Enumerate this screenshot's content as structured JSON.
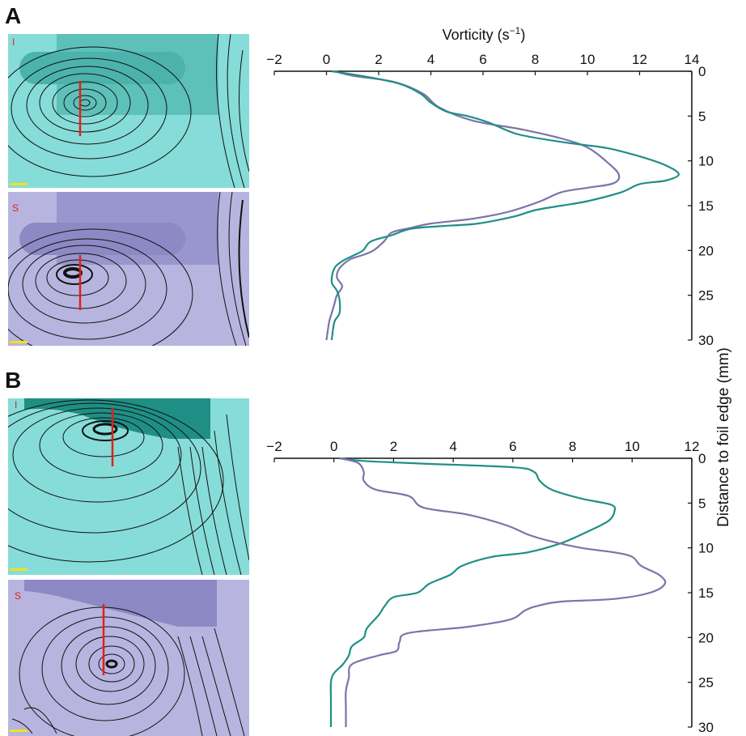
{
  "panels": [
    {
      "letter": "A",
      "top_label": "I",
      "bottom_label": "S"
    },
    {
      "letter": "B",
      "top_label": "I",
      "bottom_label": "S"
    }
  ],
  "colors": {
    "teal_line": "#1f8f86",
    "purple_line": "#7a75a8",
    "teal_bg": "#86dcd8",
    "teal_plate": "#4bb3ac",
    "purple_bg": "#b7b5df",
    "purple_plate": "#8c89c4",
    "measure_line": "#e0201b",
    "scale_bar": "#f2e21a"
  },
  "icons": [
    "flow-visualization-teal",
    "flow-visualization-purple"
  ],
  "chart_data": [
    {
      "panel": "A",
      "type": "line",
      "xlabel_main": "Vorticity (s",
      "xlabel_sup": "−1",
      "xlabel_end": ")",
      "ylabel": "Distance to foil edge (mm)",
      "xlim": [
        -2,
        14
      ],
      "ylim": [
        0,
        30
      ],
      "xticks": [
        -2,
        0,
        2,
        4,
        6,
        8,
        10,
        12,
        14
      ],
      "xtick_labels": [
        "−2",
        "0",
        "2",
        "4",
        "6",
        "8",
        "10",
        "12",
        "14"
      ],
      "yticks": [
        0,
        5,
        10,
        15,
        20,
        25,
        30
      ],
      "ytick_labels": [
        "0",
        "5",
        "10",
        "15",
        "20",
        "25",
        "30"
      ],
      "y_inverted": true,
      "series": [
        {
          "color_key": "purple_line",
          "points": [
            [
              0.3,
              0
            ],
            [
              1.0,
              0.5
            ],
            [
              2.6,
              1.2
            ],
            [
              3.7,
              2.5
            ],
            [
              4.3,
              4
            ],
            [
              5.6,
              5.5
            ],
            [
              7.5,
              6.5
            ],
            [
              9.0,
              7.5
            ],
            [
              10.0,
              8.5
            ],
            [
              10.7,
              10.0
            ],
            [
              11.2,
              11.5
            ],
            [
              11.0,
              12.5
            ],
            [
              10.0,
              13.0
            ],
            [
              9.0,
              13.5
            ],
            [
              8.2,
              14.5
            ],
            [
              7.2,
              15.5
            ],
            [
              6.5,
              16.0
            ],
            [
              5.5,
              16.5
            ],
            [
              4.0,
              17.0
            ],
            [
              3.2,
              17.5
            ],
            [
              2.5,
              18.0
            ],
            [
              2.2,
              19.0
            ],
            [
              1.8,
              20.0
            ],
            [
              1.4,
              20.5
            ],
            [
              0.9,
              21.0
            ],
            [
              0.5,
              22.0
            ],
            [
              0.4,
              23.0
            ],
            [
              0.6,
              24.0
            ],
            [
              0.4,
              25.0
            ],
            [
              0.3,
              26.0
            ],
            [
              0.2,
              27.0
            ],
            [
              0.1,
              28.0
            ],
            [
              0.0,
              30.0
            ]
          ]
        },
        {
          "color_key": "teal_line",
          "points": [
            [
              0.2,
              0
            ],
            [
              1.5,
              0.6
            ],
            [
              2.8,
              1.4
            ],
            [
              3.6,
              2.5
            ],
            [
              4.0,
              3.5
            ],
            [
              4.6,
              4.5
            ],
            [
              5.4,
              5.0
            ],
            [
              6.2,
              5.7
            ],
            [
              7.3,
              7.0
            ],
            [
              8.8,
              7.8
            ],
            [
              9.8,
              8.2
            ],
            [
              10.8,
              8.6
            ],
            [
              12.0,
              9.5
            ],
            [
              13.0,
              10.5
            ],
            [
              13.5,
              11.5
            ],
            [
              13.0,
              12.2
            ],
            [
              12.0,
              12.6
            ],
            [
              11.3,
              13.5
            ],
            [
              10.0,
              14.5
            ],
            [
              9.0,
              15.0
            ],
            [
              8.0,
              15.5
            ],
            [
              7.2,
              16.2
            ],
            [
              5.8,
              17.0
            ],
            [
              4.3,
              17.3
            ],
            [
              3.2,
              17.6
            ],
            [
              2.5,
              18.3
            ],
            [
              1.7,
              19.0
            ],
            [
              1.4,
              20.0
            ],
            [
              1.0,
              20.6
            ],
            [
              0.6,
              21.2
            ],
            [
              0.3,
              22.0
            ],
            [
              0.2,
              23.5
            ],
            [
              0.4,
              24.5
            ],
            [
              0.5,
              25.5
            ],
            [
              0.5,
              27.0
            ],
            [
              0.3,
              28.0
            ],
            [
              0.2,
              30.0
            ]
          ]
        }
      ]
    },
    {
      "panel": "B",
      "type": "line",
      "xlim": [
        -2,
        12
      ],
      "ylim": [
        0,
        30
      ],
      "xticks": [
        -2,
        0,
        2,
        4,
        6,
        8,
        10,
        12
      ],
      "xtick_labels": [
        "−2",
        "0",
        "2",
        "4",
        "6",
        "8",
        "10",
        "12"
      ],
      "yticks": [
        0,
        5,
        10,
        15,
        20,
        25,
        30
      ],
      "ytick_labels": [
        "0",
        "5",
        "10",
        "15",
        "20",
        "25",
        "30"
      ],
      "y_inverted": true,
      "series": [
        {
          "color_key": "teal_line",
          "points": [
            [
              0.2,
              0
            ],
            [
              1.0,
              0.3
            ],
            [
              3.0,
              0.6
            ],
            [
              6.0,
              1.0
            ],
            [
              6.7,
              1.5
            ],
            [
              6.9,
              2.5
            ],
            [
              7.3,
              3.5
            ],
            [
              8.3,
              4.5
            ],
            [
              9.3,
              5.2
            ],
            [
              9.4,
              6.0
            ],
            [
              9.2,
              7.0
            ],
            [
              8.5,
              8.2
            ],
            [
              7.6,
              9.5
            ],
            [
              6.5,
              10.5
            ],
            [
              5.3,
              11.0
            ],
            [
              4.3,
              12.0
            ],
            [
              3.9,
              13.0
            ],
            [
              3.2,
              14.0
            ],
            [
              2.8,
              15.0
            ],
            [
              2.0,
              15.5
            ],
            [
              1.7,
              16.5
            ],
            [
              1.5,
              17.5
            ],
            [
              1.1,
              19.0
            ],
            [
              1.0,
              20.0
            ],
            [
              0.6,
              21.0
            ],
            [
              0.5,
              22.0
            ],
            [
              0.3,
              23.0
            ],
            [
              0.0,
              24.0
            ],
            [
              -0.1,
              25.0
            ],
            [
              -0.1,
              27.0
            ],
            [
              -0.1,
              30.0
            ]
          ]
        },
        {
          "color_key": "purple_line",
          "points": [
            [
              0.2,
              0
            ],
            [
              0.8,
              0.5
            ],
            [
              1.0,
              1.5
            ],
            [
              1.0,
              2.5
            ],
            [
              1.4,
              3.5
            ],
            [
              2.5,
              4.2
            ],
            [
              3.0,
              5.5
            ],
            [
              4.5,
              6.3
            ],
            [
              5.8,
              7.5
            ],
            [
              6.5,
              8.5
            ],
            [
              7.2,
              9.2
            ],
            [
              8.3,
              10.0
            ],
            [
              9.4,
              10.5
            ],
            [
              10.0,
              11.0
            ],
            [
              10.3,
              12.0
            ],
            [
              10.9,
              13.0
            ],
            [
              11.1,
              14.0
            ],
            [
              10.6,
              15.0
            ],
            [
              9.4,
              15.7
            ],
            [
              7.6,
              16.0
            ],
            [
              6.8,
              16.5
            ],
            [
              6.4,
              17.0
            ],
            [
              5.9,
              18.0
            ],
            [
              4.5,
              18.8
            ],
            [
              2.5,
              19.5
            ],
            [
              2.2,
              20.5
            ],
            [
              2.1,
              21.5
            ],
            [
              1.5,
              22.0
            ],
            [
              0.6,
              23.0
            ],
            [
              0.5,
              24.5
            ],
            [
              0.4,
              26.0
            ],
            [
              0.4,
              28.0
            ],
            [
              0.4,
              30.0
            ]
          ]
        }
      ]
    }
  ]
}
